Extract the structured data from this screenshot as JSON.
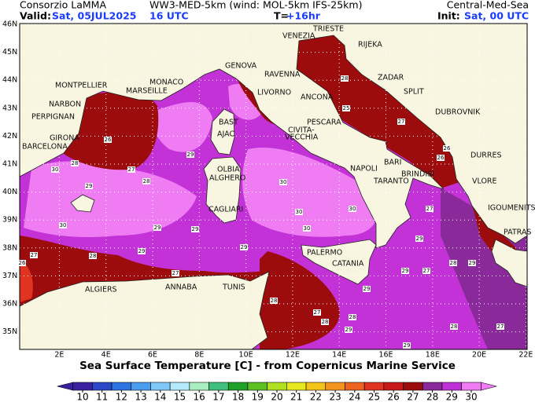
{
  "header": {
    "left": "Consorzio LaMMA",
    "center": "WW3-MED-5km (wind: MOL-5km IFS-25km)",
    "right": "Central-Med-Sea",
    "valid_label": "Valid:",
    "valid_date": "Sat, 05JUL2025",
    "valid_hour": "16 UTC",
    "lead_label": "T=",
    "lead": "+16hr",
    "init_label": "Init:",
    "init": "Sat, 00 UTC"
  },
  "map": {
    "lat_ticks": [
      {
        "value": 35,
        "label": "35N"
      },
      {
        "value": 36,
        "label": "36N"
      },
      {
        "value": 37,
        "label": "37N"
      },
      {
        "value": 38,
        "label": "38N"
      },
      {
        "value": 39,
        "label": "39N"
      },
      {
        "value": 40,
        "label": "40N"
      },
      {
        "value": 41,
        "label": "41N"
      },
      {
        "value": 42,
        "label": "42N"
      },
      {
        "value": 43,
        "label": "43N"
      },
      {
        "value": 44,
        "label": "44N"
      },
      {
        "value": 45,
        "label": "45N"
      },
      {
        "value": 46,
        "label": "46N"
      }
    ],
    "lon_ticks": [
      {
        "value": 2,
        "label": "2E"
      },
      {
        "value": 4,
        "label": "4E"
      },
      {
        "value": 6,
        "label": "6E"
      },
      {
        "value": 8,
        "label": "8E"
      },
      {
        "value": 10,
        "label": "10E"
      },
      {
        "value": 12,
        "label": "12E"
      },
      {
        "value": 14,
        "label": "14E"
      },
      {
        "value": 16,
        "label": "16E"
      },
      {
        "value": 18,
        "label": "18E"
      },
      {
        "value": 20,
        "label": "20E"
      },
      {
        "value": 22,
        "label": "22E"
      }
    ],
    "cities": [
      "VENEZIA",
      "TRIESTE",
      "RIJEKA",
      "GENOVA",
      "RAVENNA",
      "ZADAR",
      "MONTPELLIER",
      "MONACO",
      "MARSEILLE",
      "LIVORNO",
      "ANCONA",
      "SPLIT",
      "NARBON",
      "PERPIGNAN",
      "BAST",
      "PESCARA",
      "DUBROVNIK",
      "CIVITA-",
      "VECCHIA",
      "AJAC",
      "GIRONA",
      "BARCELONA",
      "DURRES",
      "OLBIA",
      "NAPOLI",
      "BARI",
      "BRINDISI",
      "ALGHERO",
      "TARANTO",
      "VLORE",
      "CAGLIARI",
      "IGOUMENITSA",
      "PATRAS",
      "PALERMO",
      "CATANIA",
      "ALGIERS",
      "ANNABA",
      "TUNIS"
    ],
    "contour_labels": [
      26,
      30,
      28,
      27,
      28,
      29,
      30,
      29,
      29,
      29,
      28,
      27,
      26,
      27,
      29,
      29,
      30,
      30,
      30,
      30,
      25,
      28,
      27,
      26,
      26,
      27,
      29,
      29,
      27,
      28,
      29,
      28,
      27,
      28,
      27,
      28,
      28,
      29,
      29,
      29
    ]
  },
  "caption": "Sea Surface Temperature [C] - from Copernicus Marine Service",
  "colorbar": {
    "ticks": [
      10,
      11,
      12,
      13,
      14,
      15,
      16,
      17,
      18,
      19,
      20,
      21,
      22,
      23,
      24,
      25,
      26,
      27,
      28,
      29,
      30
    ],
    "colors": [
      "#3a1fa0",
      "#2a48c8",
      "#2c74e0",
      "#4a9ef0",
      "#80c8f8",
      "#b4e8fa",
      "#a8eec0",
      "#40c07c",
      "#1fa028",
      "#5cc020",
      "#b0e020",
      "#e8e820",
      "#f4c418",
      "#f49420",
      "#ec6420",
      "#e03420",
      "#c81818",
      "#9c0c0c",
      "#8a2a9a",
      "#c030d8",
      "#f07cf4"
    ]
  }
}
